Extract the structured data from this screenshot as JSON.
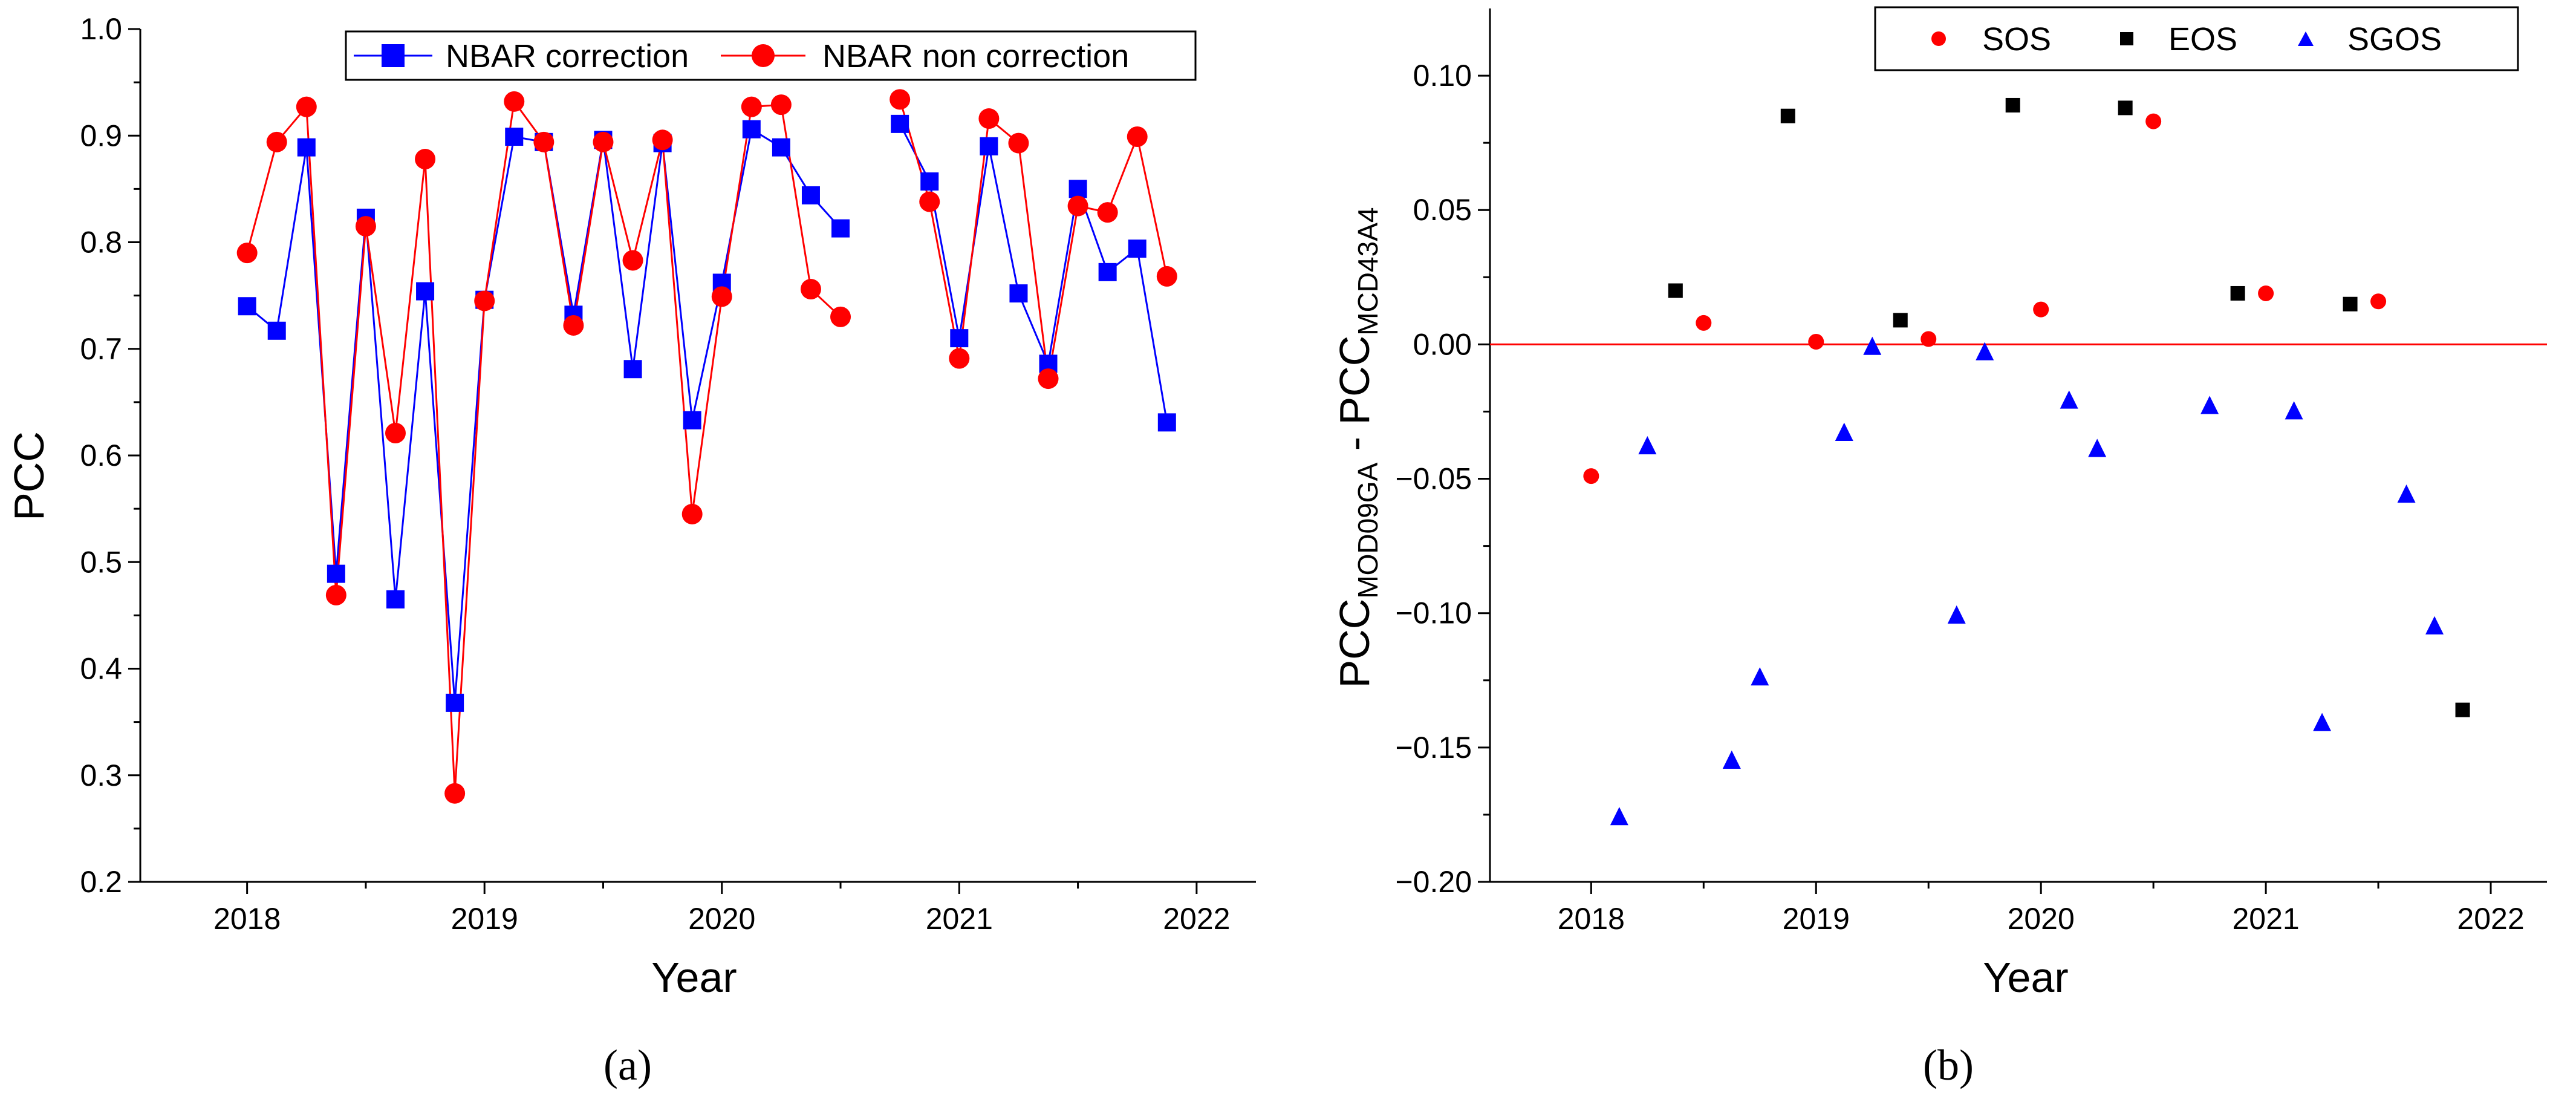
{
  "chart_data": [
    {
      "panel_label": "(a)",
      "type": "line",
      "xlabel": "Year",
      "ylabel": "PCC",
      "xlim": [
        2017.55,
        2022.25
      ],
      "ylim": [
        0.2,
        1.0
      ],
      "xticks": [
        2018,
        2019,
        2020,
        2021,
        2022
      ],
      "xtick_labels": [
        "2018",
        "2019",
        "2020",
        "2021",
        "2022"
      ],
      "yticks": [
        0.2,
        0.3,
        0.4,
        0.5,
        0.6,
        0.7,
        0.8,
        0.9,
        1.0
      ],
      "ytick_labels": [
        "0.2",
        "0.3",
        "0.4",
        "0.5",
        "0.6",
        "0.7",
        "0.8",
        "0.9",
        "1.0"
      ],
      "legend_position": "top-right",
      "series": [
        {
          "name": "NBAR correction",
          "color": "#0000ff",
          "marker": "square",
          "segments": [
            [
              [
                2018.0,
                0.74
              ],
              [
                2018.125,
                0.717
              ],
              [
                2018.25,
                0.889
              ],
              [
                2018.375,
                0.489
              ],
              [
                2018.5,
                0.823
              ],
              [
                2018.625,
                0.465
              ],
              [
                2018.75,
                0.754
              ],
              [
                2018.875,
                0.368
              ],
              [
                2019.0,
                0.746
              ],
              [
                2019.125,
                0.899
              ],
              [
                2019.25,
                0.894
              ],
              [
                2019.375,
                0.732
              ],
              [
                2019.5,
                0.896
              ],
              [
                2019.625,
                0.681
              ],
              [
                2019.75,
                0.893
              ],
              [
                2019.875,
                0.633
              ],
              [
                2020.0,
                0.762
              ],
              [
                2020.125,
                0.906
              ],
              [
                2020.25,
                0.889
              ],
              [
                2020.375,
                0.844
              ],
              [
                2020.5,
                0.813
              ]
            ],
            [
              [
                2020.75,
                0.911
              ],
              [
                2020.875,
                0.857
              ],
              [
                2021.0,
                0.71
              ],
              [
                2021.125,
                0.89
              ],
              [
                2021.25,
                0.752
              ],
              [
                2021.375,
                0.686
              ],
              [
                2021.5,
                0.85
              ],
              [
                2021.625,
                0.772
              ],
              [
                2021.75,
                0.794
              ],
              [
                2021.875,
                0.631
              ]
            ]
          ]
        },
        {
          "name": "NBAR non correction",
          "color": "#ff0000",
          "marker": "circle",
          "segments": [
            [
              [
                2018.0,
                0.79
              ],
              [
                2018.125,
                0.894
              ],
              [
                2018.25,
                0.927
              ],
              [
                2018.375,
                0.469
              ],
              [
                2018.5,
                0.815
              ],
              [
                2018.625,
                0.621
              ],
              [
                2018.75,
                0.878
              ],
              [
                2018.875,
                0.283
              ],
              [
                2019.0,
                0.745
              ],
              [
                2019.125,
                0.932
              ],
              [
                2019.25,
                0.894
              ],
              [
                2019.375,
                0.722
              ],
              [
                2019.5,
                0.894
              ],
              [
                2019.625,
                0.783
              ],
              [
                2019.75,
                0.896
              ],
              [
                2019.875,
                0.545
              ],
              [
                2020.0,
                0.749
              ],
              [
                2020.125,
                0.927
              ],
              [
                2020.25,
                0.929
              ],
              [
                2020.375,
                0.756
              ],
              [
                2020.5,
                0.73
              ]
            ],
            [
              [
                2020.75,
                0.934
              ],
              [
                2020.875,
                0.838
              ],
              [
                2021.0,
                0.691
              ],
              [
                2021.125,
                0.916
              ],
              [
                2021.25,
                0.893
              ],
              [
                2021.375,
                0.672
              ],
              [
                2021.5,
                0.834
              ],
              [
                2021.625,
                0.828
              ],
              [
                2021.75,
                0.899
              ],
              [
                2021.875,
                0.768
              ]
            ]
          ]
        }
      ]
    },
    {
      "panel_label": "(b)",
      "type": "scatter",
      "xlabel": "Year",
      "ylabel_main": "PCC",
      "ylabel_sub1": "MOD09GA",
      "ylabel_mid": " - PCC",
      "ylabel_sub2": "MCD43A4",
      "xlim": [
        2017.55,
        2022.25
      ],
      "ylim": [
        -0.2,
        0.125
      ],
      "xticks": [
        2018,
        2019,
        2020,
        2021,
        2022
      ],
      "xtick_labels": [
        "2018",
        "2019",
        "2020",
        "2021",
        "2022"
      ],
      "yticks": [
        -0.2,
        -0.15,
        -0.1,
        -0.05,
        0.0,
        0.05,
        0.1
      ],
      "ytick_labels": [
        "−0.20",
        "−0.15",
        "−0.10",
        "−0.05",
        "0.00",
        "0.05",
        "0.10"
      ],
      "reference_line": {
        "y": 0.0,
        "color": "#ff0000"
      },
      "legend_position": "top-right",
      "series": [
        {
          "name": "SOS",
          "color": "#ff0000",
          "marker": "circle",
          "points": [
            [
              2018.0,
              -0.049
            ],
            [
              2018.5,
              0.008
            ],
            [
              2019.0,
              0.001
            ],
            [
              2019.5,
              0.002
            ],
            [
              2020.0,
              0.013
            ],
            [
              2020.5,
              0.083
            ],
            [
              2021.0,
              0.019
            ],
            [
              2021.5,
              0.016
            ]
          ]
        },
        {
          "name": "EOS",
          "color": "#000000",
          "marker": "square",
          "points": [
            [
              2018.375,
              0.02
            ],
            [
              2018.875,
              0.085
            ],
            [
              2019.375,
              0.009
            ],
            [
              2019.875,
              0.089
            ],
            [
              2020.375,
              0.088
            ],
            [
              2020.875,
              0.019
            ],
            [
              2021.375,
              0.015
            ],
            [
              2021.875,
              -0.136
            ]
          ]
        },
        {
          "name": "SGOS",
          "color": "#0000ff",
          "marker": "triangle",
          "points": [
            [
              2018.125,
              -0.176
            ],
            [
              2018.25,
              -0.038
            ],
            [
              2018.625,
              -0.155
            ],
            [
              2018.75,
              -0.124
            ],
            [
              2019.125,
              -0.033
            ],
            [
              2019.25,
              -0.001
            ],
            [
              2019.625,
              -0.101
            ],
            [
              2019.75,
              -0.003
            ],
            [
              2020.125,
              -0.021
            ],
            [
              2020.25,
              -0.039
            ],
            [
              2020.75,
              -0.023
            ],
            [
              2021.125,
              -0.025
            ],
            [
              2021.25,
              -0.141
            ],
            [
              2021.625,
              -0.056
            ],
            [
              2021.75,
              -0.105
            ]
          ]
        }
      ]
    }
  ]
}
